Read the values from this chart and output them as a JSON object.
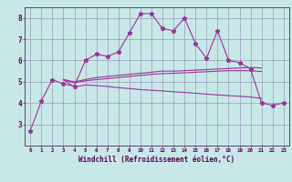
{
  "xlabel": "Windchill (Refroidissement éolien,°C)",
  "x": [
    0,
    1,
    2,
    3,
    4,
    5,
    6,
    7,
    8,
    9,
    10,
    11,
    12,
    13,
    14,
    15,
    16,
    17,
    18,
    19,
    20,
    21,
    22,
    23
  ],
  "line1": [
    2.7,
    4.1,
    5.1,
    4.9,
    4.8,
    6.0,
    6.3,
    6.2,
    6.4,
    7.3,
    8.2,
    8.2,
    7.5,
    7.4,
    8.0,
    6.8,
    6.1,
    7.4,
    6.0,
    5.9,
    5.6,
    4.0,
    3.9,
    4.0
  ],
  "line2": [
    null,
    null,
    null,
    5.1,
    5.0,
    5.1,
    5.2,
    5.25,
    5.3,
    5.35,
    5.4,
    5.45,
    5.5,
    5.5,
    5.52,
    5.55,
    5.57,
    5.6,
    5.62,
    5.65,
    5.67,
    5.65,
    null,
    null
  ],
  "line3": [
    null,
    null,
    null,
    5.1,
    4.95,
    5.05,
    5.1,
    5.15,
    5.2,
    5.25,
    5.3,
    5.35,
    5.38,
    5.4,
    5.42,
    5.45,
    5.47,
    5.5,
    5.52,
    5.52,
    5.52,
    5.48,
    null,
    null
  ],
  "line4": [
    null,
    null,
    null,
    5.1,
    4.75,
    4.85,
    4.82,
    4.78,
    4.72,
    4.68,
    4.63,
    4.6,
    4.57,
    4.53,
    4.5,
    4.46,
    4.42,
    4.38,
    4.35,
    4.32,
    4.28,
    4.22,
    null,
    null
  ],
  "bg_color": "#c8e8e8",
  "line_color": "#993399",
  "grid_color": "#9999bb",
  "ylim": [
    2,
    8.5
  ],
  "xlim": [
    -0.5,
    23.5
  ],
  "yticks": [
    3,
    4,
    5,
    6,
    7,
    8
  ],
  "xticks": [
    0,
    1,
    2,
    3,
    4,
    5,
    6,
    7,
    8,
    9,
    10,
    11,
    12,
    13,
    14,
    15,
    16,
    17,
    18,
    19,
    20,
    21,
    22,
    23
  ]
}
